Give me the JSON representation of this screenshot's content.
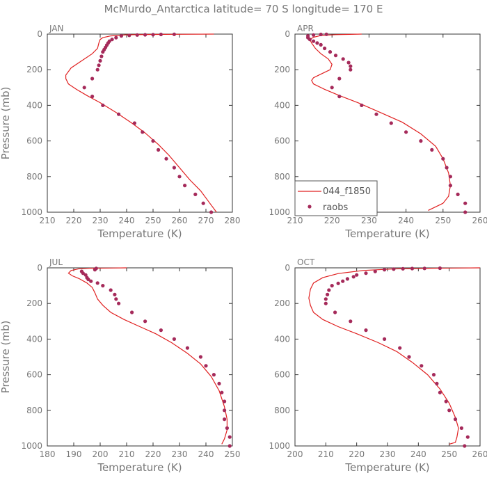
{
  "chart_data": {
    "type": "line",
    "title": "McMurdo_Antarctica  latitude= 70 S longitude= 170 E",
    "legend": {
      "entries": [
        "044_f1850",
        "raobs"
      ],
      "colors": {
        "model": "#e02020",
        "raobs": "#a52a5a"
      },
      "placement": "APR panel lower-left"
    },
    "panels": [
      {
        "month": "JAN",
        "xlabel": "Temperature (K)",
        "ylabel": "Pressure (mb)",
        "xlim": [
          210,
          280
        ],
        "ylim": [
          1000,
          0
        ],
        "xticks": [
          210,
          220,
          230,
          240,
          250,
          260,
          270,
          280
        ],
        "yticks": [
          0,
          200,
          400,
          600,
          800,
          1000
        ],
        "model": [
          [
            273,
            0
          ],
          [
            250,
            2
          ],
          [
            240,
            4
          ],
          [
            234,
            10
          ],
          [
            231,
            20
          ],
          [
            230,
            30
          ],
          [
            229.5,
            50
          ],
          [
            229,
            80
          ],
          [
            227,
            110
          ],
          [
            223,
            150
          ],
          [
            219,
            190
          ],
          [
            217,
            230
          ],
          [
            217,
            250
          ],
          [
            218,
            280
          ],
          [
            221,
            310
          ],
          [
            225,
            345
          ],
          [
            230,
            385
          ],
          [
            236,
            440
          ],
          [
            242,
            500
          ],
          [
            247,
            555
          ],
          [
            252,
            620
          ],
          [
            256,
            680
          ],
          [
            260,
            750
          ],
          [
            264,
            820
          ],
          [
            268,
            880
          ],
          [
            272,
            960
          ],
          [
            274,
            1000
          ]
        ],
        "raobs": [
          [
            272,
            1000
          ],
          [
            269,
            950
          ],
          [
            266,
            900
          ],
          [
            262,
            850
          ],
          [
            260,
            800
          ],
          [
            258,
            750
          ],
          [
            255,
            700
          ],
          [
            252,
            650
          ],
          [
            250,
            600
          ],
          [
            246,
            550
          ],
          [
            243,
            500
          ],
          [
            237,
            450
          ],
          [
            231,
            400
          ],
          [
            227,
            350
          ],
          [
            224,
            300
          ],
          [
            227,
            250
          ],
          [
            229,
            200
          ],
          [
            229.5,
            175
          ],
          [
            230,
            150
          ],
          [
            230.5,
            125
          ],
          [
            231,
            100
          ],
          [
            231.5,
            87
          ],
          [
            232,
            75
          ],
          [
            232.5,
            62
          ],
          [
            233,
            50
          ],
          [
            233.5,
            40
          ],
          [
            234.5,
            30
          ],
          [
            236,
            20
          ],
          [
            238,
            10
          ],
          [
            241,
            7
          ],
          [
            244,
            5
          ],
          [
            247,
            4
          ],
          [
            250,
            3
          ],
          [
            253,
            2
          ],
          [
            258,
            1
          ]
        ]
      },
      {
        "month": "APR",
        "xlabel": "Temperature (K)",
        "ylabel": "",
        "xlim": [
          210,
          260
        ],
        "ylim": [
          1000,
          0
        ],
        "xticks": [
          210,
          220,
          230,
          240,
          250,
          260
        ],
        "yticks": [
          0,
          200,
          400,
          600,
          800,
          1000
        ],
        "model": [
          [
            228,
            0
          ],
          [
            221,
            3
          ],
          [
            217,
            8
          ],
          [
            215,
            18
          ],
          [
            214,
            30
          ],
          [
            214.5,
            50
          ],
          [
            215.5,
            80
          ],
          [
            217,
            110
          ],
          [
            219,
            140
          ],
          [
            220,
            170
          ],
          [
            219.5,
            200
          ],
          [
            217,
            225
          ],
          [
            215,
            245
          ],
          [
            214.5,
            260
          ],
          [
            215,
            280
          ],
          [
            218,
            310
          ],
          [
            222,
            345
          ],
          [
            227,
            385
          ],
          [
            233,
            440
          ],
          [
            239,
            495
          ],
          [
            244,
            560
          ],
          [
            248,
            630
          ],
          [
            250,
            700
          ],
          [
            251.5,
            780
          ],
          [
            252,
            850
          ],
          [
            251.5,
            910
          ],
          [
            250,
            950
          ],
          [
            246,
            990
          ]
        ],
        "raobs": [
          [
            256,
            1000
          ],
          [
            256,
            950
          ],
          [
            254,
            900
          ],
          [
            252,
            850
          ],
          [
            252,
            800
          ],
          [
            251,
            750
          ],
          [
            250,
            700
          ],
          [
            247,
            650
          ],
          [
            244,
            600
          ],
          [
            240,
            550
          ],
          [
            236,
            500
          ],
          [
            232,
            450
          ],
          [
            228,
            400
          ],
          [
            222,
            350
          ],
          [
            220,
            300
          ],
          [
            222,
            250
          ],
          [
            225,
            200
          ],
          [
            225,
            180
          ],
          [
            224.5,
            160
          ],
          [
            223,
            140
          ],
          [
            221,
            120
          ],
          [
            219.5,
            100
          ],
          [
            218,
            80
          ],
          [
            217,
            60
          ],
          [
            216,
            50
          ],
          [
            215,
            40
          ],
          [
            214,
            30
          ],
          [
            213.5,
            20
          ],
          [
            213.5,
            10
          ],
          [
            215,
            5
          ],
          [
            217,
            2
          ],
          [
            218.5,
            1
          ]
        ]
      },
      {
        "month": "JUL",
        "xlabel": "Temperature (K)",
        "ylabel": "Pressure (mb)",
        "xlim": [
          180,
          250
        ],
        "ylim": [
          1000,
          0
        ],
        "xticks": [
          180,
          190,
          200,
          210,
          220,
          230,
          240,
          250
        ],
        "yticks": [
          0,
          200,
          400,
          600,
          800,
          1000
        ],
        "model": [
          [
            210,
            0
          ],
          [
            203,
            1
          ],
          [
            196,
            2
          ],
          [
            192,
            5
          ],
          [
            189,
            15
          ],
          [
            188,
            30
          ],
          [
            189.5,
            45
          ],
          [
            192,
            60
          ],
          [
            195,
            85
          ],
          [
            197,
            110
          ],
          [
            198,
            140
          ],
          [
            199,
            175
          ],
          [
            201,
            210
          ],
          [
            204,
            250
          ],
          [
            209,
            290
          ],
          [
            215,
            330
          ],
          [
            221,
            370
          ],
          [
            227,
            420
          ],
          [
            233,
            480
          ],
          [
            238,
            540
          ],
          [
            242,
            610
          ],
          [
            245,
            690
          ],
          [
            247,
            780
          ],
          [
            248,
            850
          ],
          [
            248,
            910
          ],
          [
            247,
            960
          ],
          [
            246,
            990
          ]
        ],
        "raobs": [
          [
            249,
            1000
          ],
          [
            249,
            950
          ],
          [
            248,
            900
          ],
          [
            247,
            850
          ],
          [
            247,
            800
          ],
          [
            247,
            750
          ],
          [
            246,
            700
          ],
          [
            245,
            650
          ],
          [
            243,
            600
          ],
          [
            240,
            550
          ],
          [
            238,
            500
          ],
          [
            233,
            450
          ],
          [
            228,
            400
          ],
          [
            223,
            350
          ],
          [
            217,
            300
          ],
          [
            212,
            250
          ],
          [
            207,
            200
          ],
          [
            206,
            175
          ],
          [
            205.5,
            150
          ],
          [
            204,
            125
          ],
          [
            201,
            100
          ],
          [
            199,
            85
          ],
          [
            196.5,
            75
          ],
          [
            195.5,
            65
          ],
          [
            195,
            55
          ],
          [
            194.5,
            40
          ],
          [
            193.5,
            30
          ],
          [
            193,
            20
          ],
          [
            198,
            10
          ],
          [
            198.5,
            3
          ]
        ]
      },
      {
        "month": "OCT",
        "xlabel": "Temperature (K)",
        "ylabel": "",
        "xlim": [
          200,
          260
        ],
        "ylim": [
          1000,
          0
        ],
        "xticks": [
          200,
          210,
          220,
          230,
          240,
          250,
          260
        ],
        "yticks": [
          0,
          200,
          400,
          600,
          800,
          1000
        ],
        "model": [
          [
            260,
            0
          ],
          [
            245,
            2
          ],
          [
            232,
            6
          ],
          [
            222,
            15
          ],
          [
            214,
            32
          ],
          [
            209,
            55
          ],
          [
            206,
            85
          ],
          [
            205,
            120
          ],
          [
            204.5,
            170
          ],
          [
            205,
            210
          ],
          [
            206,
            250
          ],
          [
            209,
            290
          ],
          [
            214,
            330
          ],
          [
            220,
            370
          ],
          [
            227,
            420
          ],
          [
            233,
            470
          ],
          [
            238,
            530
          ],
          [
            243,
            600
          ],
          [
            247,
            680
          ],
          [
            250,
            760
          ],
          [
            252,
            840
          ],
          [
            253,
            900
          ],
          [
            252.5,
            950
          ],
          [
            252,
            980
          ],
          [
            250,
            990
          ]
        ],
        "raobs": [
          [
            255,
            1000
          ],
          [
            256,
            950
          ],
          [
            254,
            900
          ],
          [
            252,
            850
          ],
          [
            250,
            800
          ],
          [
            249,
            750
          ],
          [
            247,
            700
          ],
          [
            246,
            650
          ],
          [
            245,
            600
          ],
          [
            241,
            550
          ],
          [
            237,
            500
          ],
          [
            234,
            450
          ],
          [
            229,
            400
          ],
          [
            223,
            350
          ],
          [
            218,
            300
          ],
          [
            213,
            250
          ],
          [
            210,
            200
          ],
          [
            210,
            175
          ],
          [
            210.5,
            150
          ],
          [
            211,
            125
          ],
          [
            212,
            100
          ],
          [
            214,
            87
          ],
          [
            215.5,
            75
          ],
          [
            217,
            62
          ],
          [
            219,
            50
          ],
          [
            220,
            40
          ],
          [
            223,
            30
          ],
          [
            226,
            20
          ],
          [
            229,
            10
          ],
          [
            232,
            7
          ],
          [
            235,
            5
          ],
          [
            238,
            4
          ],
          [
            242,
            3
          ],
          [
            247,
            2
          ]
        ]
      }
    ]
  }
}
